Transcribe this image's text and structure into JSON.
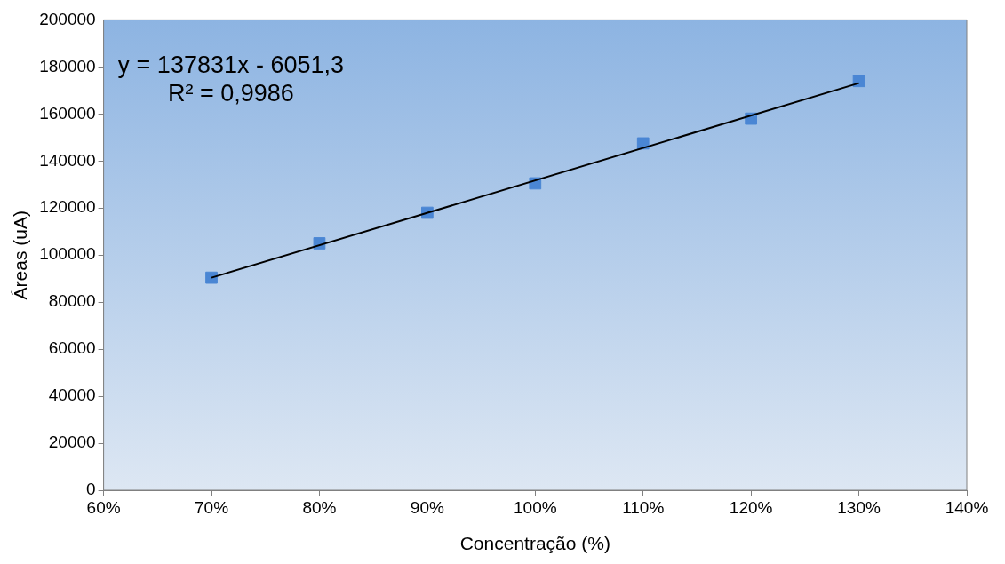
{
  "chart_data": {
    "type": "scatter",
    "xlabel": "Concentração (%)",
    "ylabel": "Áreas (uA)",
    "xlim": [
      0.6,
      1.4
    ],
    "xticks": [
      {
        "value": 0.6,
        "label": "60%"
      },
      {
        "value": 0.7,
        "label": "70%"
      },
      {
        "value": 0.8,
        "label": "80%"
      },
      {
        "value": 0.9,
        "label": "90%"
      },
      {
        "value": 1.0,
        "label": "100%"
      },
      {
        "value": 1.1,
        "label": "110%"
      },
      {
        "value": 1.2,
        "label": "120%"
      },
      {
        "value": 1.3,
        "label": "130%"
      },
      {
        "value": 1.4,
        "label": "140%"
      }
    ],
    "ylim": [
      0,
      200000
    ],
    "yticks": [
      0,
      20000,
      40000,
      60000,
      80000,
      100000,
      120000,
      140000,
      160000,
      180000,
      200000
    ],
    "series": [
      {
        "type": "scatter",
        "color": "#4a86d4",
        "marker": "square",
        "x": [
          0.7,
          0.8,
          0.9,
          1.0,
          1.1,
          1.2,
          1.3
        ],
        "values": [
          90400,
          105000,
          118000,
          130500,
          147500,
          158000,
          174000
        ]
      },
      {
        "type": "line",
        "color": "#000000",
        "marker": "none",
        "line_style": "solid",
        "x": [
          0.7,
          1.3
        ],
        "values": [
          90400,
          173100
        ]
      }
    ],
    "annotations": [
      "y = 137831x - 6051,3",
      "R² = 0,9986"
    ],
    "grid": false,
    "legend": false
  }
}
